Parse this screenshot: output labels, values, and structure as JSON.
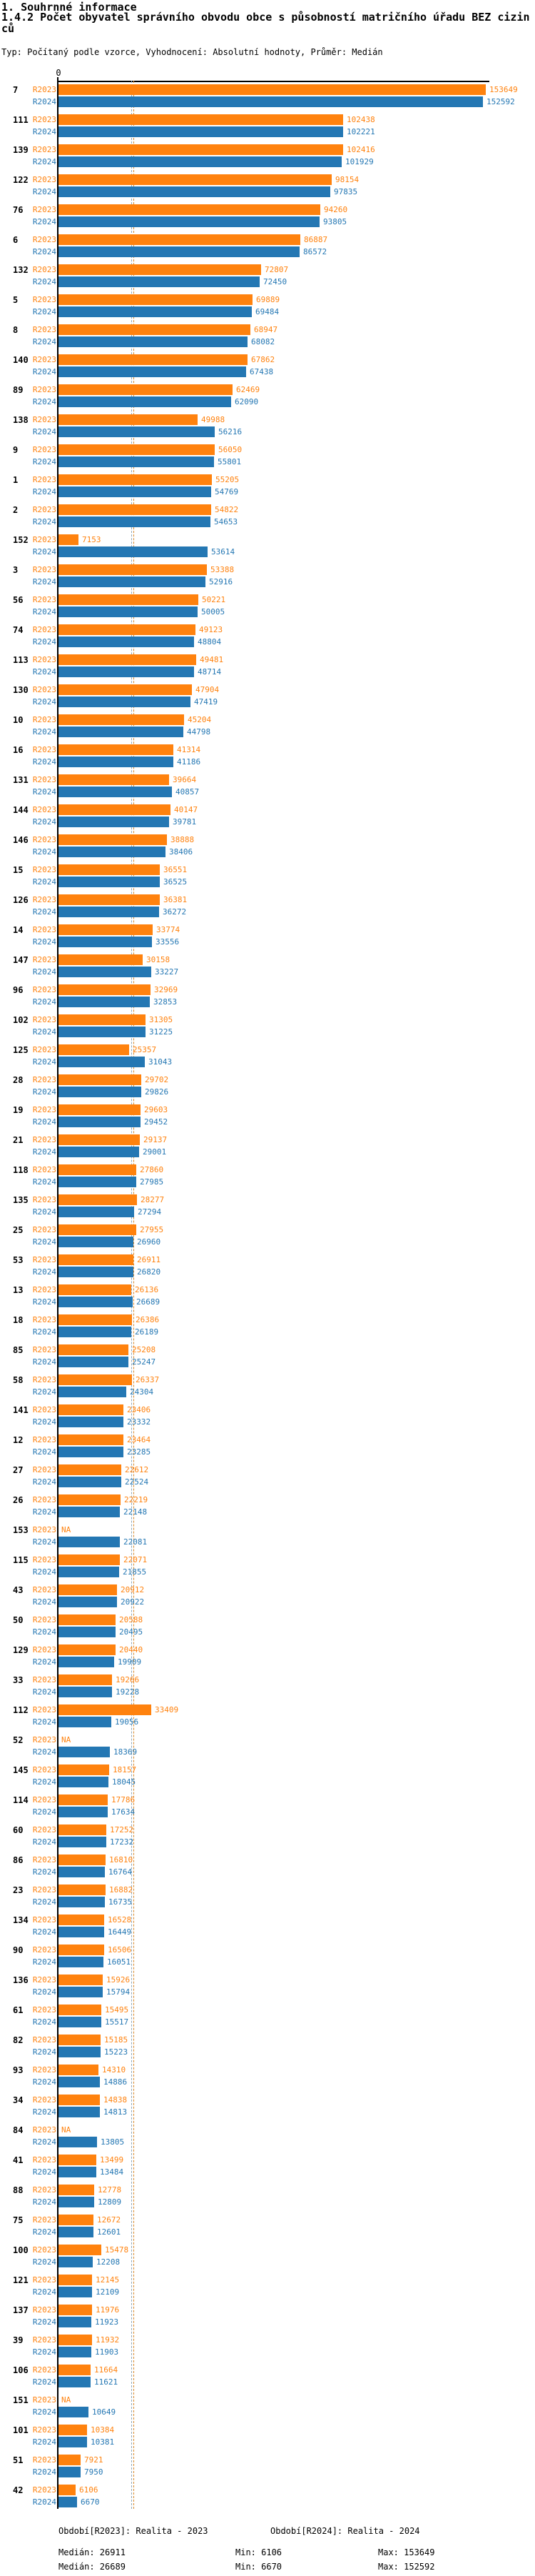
{
  "header": {
    "title": "1. Souhrnné informace",
    "subtitle": "1.4.2 Počet obyvatel správního obvodu obce s působností matričního úřadu BEZ cizinců",
    "meta": "Typ: Počítaný podle vzorce, Vyhodnocení: Absolutní hodnoty, Průměr: Medián"
  },
  "chart_data": {
    "type": "bar",
    "orientation": "horizontal",
    "title": "1.4.2 Počet obyvatel správního obvodu obce s působností matričního úřadu BEZ cizinců",
    "series_names": [
      "R2023",
      "R2024"
    ],
    "colors": {
      "r2023": "#FF820E",
      "r2024": "#2477B3"
    },
    "axis": {
      "zero_label": "0",
      "max_value": 153649,
      "xlim": [
        0,
        155000
      ],
      "grid": false
    },
    "median_lines": {
      "r2023": 26911,
      "r2024": 26689
    },
    "na_label": "NA",
    "legend_position": "bottom",
    "groups": [
      {
        "id": "7",
        "r2023": 153649,
        "r2024": 152592
      },
      {
        "id": "111",
        "r2023": 102438,
        "r2024": 102221
      },
      {
        "id": "139",
        "r2023": 102416,
        "r2024": 101929
      },
      {
        "id": "122",
        "r2023": 98154,
        "r2024": 97835
      },
      {
        "id": "76",
        "r2023": 94260,
        "r2024": 93805
      },
      {
        "id": "6",
        "r2023": 86887,
        "r2024": 86572
      },
      {
        "id": "132",
        "r2023": 72807,
        "r2024": 72450
      },
      {
        "id": "5",
        "r2023": 69889,
        "r2024": 69484
      },
      {
        "id": "8",
        "r2023": 68947,
        "r2024": 68082
      },
      {
        "id": "140",
        "r2023": 67862,
        "r2024": 67438
      },
      {
        "id": "89",
        "r2023": 62469,
        "r2024": 62090
      },
      {
        "id": "138",
        "r2023": 49988,
        "r2024": 56216
      },
      {
        "id": "9",
        "r2023": 56050,
        "r2024": 55801
      },
      {
        "id": "1",
        "r2023": 55205,
        "r2024": 54769
      },
      {
        "id": "2",
        "r2023": 54822,
        "r2024": 54653
      },
      {
        "id": "152",
        "r2023": 7153,
        "r2024": 53614
      },
      {
        "id": "3",
        "r2023": 53388,
        "r2024": 52916
      },
      {
        "id": "56",
        "r2023": 50221,
        "r2024": 50005
      },
      {
        "id": "74",
        "r2023": 49123,
        "r2024": 48804
      },
      {
        "id": "113",
        "r2023": 49481,
        "r2024": 48714
      },
      {
        "id": "130",
        "r2023": 47904,
        "r2024": 47419
      },
      {
        "id": "10",
        "r2023": 45204,
        "r2024": 44798
      },
      {
        "id": "16",
        "r2023": 41314,
        "r2024": 41186
      },
      {
        "id": "131",
        "r2023": 39664,
        "r2024": 40857
      },
      {
        "id": "144",
        "r2023": 40147,
        "r2024": 39781
      },
      {
        "id": "146",
        "r2023": 38888,
        "r2024": 38406
      },
      {
        "id": "15",
        "r2023": 36551,
        "r2024": 36525
      },
      {
        "id": "126",
        "r2023": 36381,
        "r2024": 36272
      },
      {
        "id": "14",
        "r2023": 33774,
        "r2024": 33556
      },
      {
        "id": "147",
        "r2023": 30158,
        "r2024": 33227
      },
      {
        "id": "96",
        "r2023": 32969,
        "r2024": 32853
      },
      {
        "id": "102",
        "r2023": 31305,
        "r2024": 31225
      },
      {
        "id": "125",
        "r2023": 25357,
        "r2024": 31043
      },
      {
        "id": "28",
        "r2023": 29702,
        "r2024": 29826
      },
      {
        "id": "19",
        "r2023": 29603,
        "r2024": 29452
      },
      {
        "id": "21",
        "r2023": 29137,
        "r2024": 29001
      },
      {
        "id": "118",
        "r2023": 27860,
        "r2024": 27985
      },
      {
        "id": "135",
        "r2023": 28277,
        "r2024": 27294
      },
      {
        "id": "25",
        "r2023": 27955,
        "r2024": 26960
      },
      {
        "id": "53",
        "r2023": 26911,
        "r2024": 26820
      },
      {
        "id": "13",
        "r2023": 26136,
        "r2024": 26689
      },
      {
        "id": "18",
        "r2023": 26386,
        "r2024": 26189
      },
      {
        "id": "85",
        "r2023": 25208,
        "r2024": 25247
      },
      {
        "id": "58",
        "r2023": 26337,
        "r2024": 24304
      },
      {
        "id": "141",
        "r2023": 23406,
        "r2024": 23332
      },
      {
        "id": "12",
        "r2023": 23464,
        "r2024": 23285
      },
      {
        "id": "27",
        "r2023": 22612,
        "r2024": 22524
      },
      {
        "id": "26",
        "r2023": 22219,
        "r2024": 22148
      },
      {
        "id": "153",
        "r2023": null,
        "r2024": 22081
      },
      {
        "id": "115",
        "r2023": 22071,
        "r2024": 21855
      },
      {
        "id": "43",
        "r2023": 20912,
        "r2024": 20922
      },
      {
        "id": "50",
        "r2023": 20588,
        "r2024": 20495
      },
      {
        "id": "129",
        "r2023": 20440,
        "r2024": 19909
      },
      {
        "id": "33",
        "r2023": 19266,
        "r2024": 19228
      },
      {
        "id": "112",
        "r2023": 33409,
        "r2024": 19056
      },
      {
        "id": "52",
        "r2023": null,
        "r2024": 18369
      },
      {
        "id": "145",
        "r2023": 18157,
        "r2024": 18045
      },
      {
        "id": "114",
        "r2023": 17786,
        "r2024": 17634
      },
      {
        "id": "60",
        "r2023": 17252,
        "r2024": 17232
      },
      {
        "id": "86",
        "r2023": 16810,
        "r2024": 16764
      },
      {
        "id": "23",
        "r2023": 16882,
        "r2024": 16735
      },
      {
        "id": "134",
        "r2023": 16528,
        "r2024": 16449
      },
      {
        "id": "90",
        "r2023": 16506,
        "r2024": 16051
      },
      {
        "id": "136",
        "r2023": 15926,
        "r2024": 15794
      },
      {
        "id": "61",
        "r2023": 15495,
        "r2024": 15517
      },
      {
        "id": "82",
        "r2023": 15185,
        "r2024": 15223
      },
      {
        "id": "93",
        "r2023": 14310,
        "r2024": 14886
      },
      {
        "id": "34",
        "r2023": 14838,
        "r2024": 14813
      },
      {
        "id": "84",
        "r2023": null,
        "r2024": 13805
      },
      {
        "id": "41",
        "r2023": 13499,
        "r2024": 13484
      },
      {
        "id": "88",
        "r2023": 12778,
        "r2024": 12809
      },
      {
        "id": "75",
        "r2023": 12672,
        "r2024": 12601
      },
      {
        "id": "100",
        "r2023": 15478,
        "r2024": 12208
      },
      {
        "id": "121",
        "r2023": 12145,
        "r2024": 12109
      },
      {
        "id": "137",
        "r2023": 11976,
        "r2024": 11923
      },
      {
        "id": "39",
        "r2023": 11932,
        "r2024": 11903
      },
      {
        "id": "106",
        "r2023": 11664,
        "r2024": 11621
      },
      {
        "id": "151",
        "r2023": null,
        "r2024": 10649
      },
      {
        "id": "101",
        "r2023": 10384,
        "r2024": 10381
      },
      {
        "id": "51",
        "r2023": 7921,
        "r2024": 7950
      },
      {
        "id": "42",
        "r2023": 6106,
        "r2024": 6670
      }
    ]
  },
  "footer": {
    "period_r2023": "Období[R2023]: Realita - 2023",
    "period_r2024": "Období[R2024]: Realita - 2024",
    "stats_r2023": {
      "median": "Medián: 26911",
      "min": "Min: 6106",
      "max": "Max: 153649"
    },
    "stats_r2024": {
      "median": "Medián: 26689",
      "min": "Min: 6670",
      "max": "Max: 152592"
    }
  }
}
